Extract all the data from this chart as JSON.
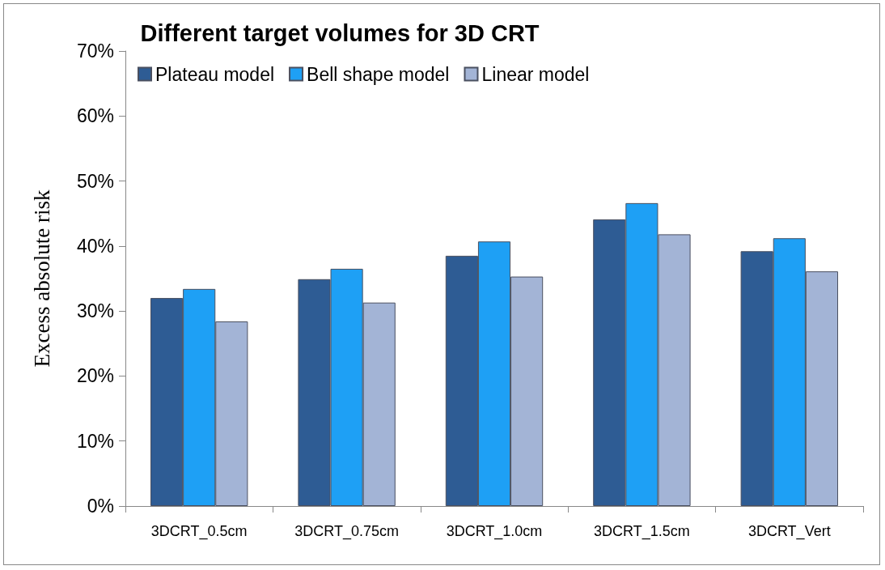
{
  "chart_data": {
    "type": "bar",
    "title": "Different target volumes for 3D CRT",
    "ylabel": "Excess absolute risk",
    "categories": [
      "3DCRT_0.5cm",
      "3DCRT_0.75cm",
      "3DCRT_1.0cm",
      "3DCRT_1.5cm",
      "3DCRT_Vert"
    ],
    "series": [
      {
        "name": "Plateau model",
        "color": "#2e5c94",
        "values": [
          32.0,
          34.9,
          38.5,
          44.1,
          39.2
        ]
      },
      {
        "name": "Bell shape model",
        "color": "#1ea0f5",
        "values": [
          33.4,
          36.5,
          40.7,
          46.6,
          41.2
        ]
      },
      {
        "name": "Linear model",
        "color": "#a3b4d6",
        "values": [
          28.4,
          31.3,
          35.3,
          41.8,
          36.1
        ]
      }
    ],
    "ylim": [
      0,
      70
    ],
    "yticks": [
      {
        "value": 0,
        "label": "0%"
      },
      {
        "value": 10,
        "label": "10%"
      },
      {
        "value": 20,
        "label": "20%"
      },
      {
        "value": 30,
        "label": "30%"
      },
      {
        "value": 40,
        "label": "40%"
      },
      {
        "value": 50,
        "label": "50%"
      },
      {
        "value": 60,
        "label": "60%"
      },
      {
        "value": 70,
        "label": "70%"
      }
    ],
    "grid": false,
    "legend": "top"
  }
}
